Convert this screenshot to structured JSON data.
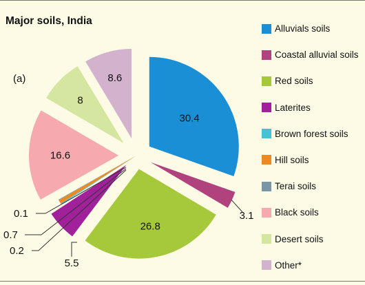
{
  "chart_data": {
    "type": "pie",
    "title": "Major soils, India",
    "panel_label": "(a)",
    "legend_position": "right",
    "slices": [
      {
        "label": "Alluvials soils",
        "value": 30.4,
        "display": "30.4",
        "color": "#1a8fd6",
        "exploded": true
      },
      {
        "label": "Coastal alluvial soils",
        "value": 3.1,
        "display": "3.1",
        "color": "#b0427e",
        "exploded": true
      },
      {
        "label": "Red soils",
        "value": 26.8,
        "display": "26.8",
        "color": "#a6c93c",
        "exploded": true
      },
      {
        "label": "Laterites",
        "value": 5.5,
        "display": "5.5",
        "color": "#a0219a",
        "exploded": true
      },
      {
        "label": "Brown forest soils",
        "value": 0.2,
        "display": "0.2",
        "color": "#44c4d2",
        "exploded": false
      },
      {
        "label": "Hill soils",
        "value": 0.7,
        "display": "0.7",
        "color": "#ee8a24",
        "exploded": false
      },
      {
        "label": "Terai soils",
        "value": 0.1,
        "display": "0.1",
        "color": "#7a96a6",
        "exploded": false
      },
      {
        "label": "Black soils",
        "value": 16.6,
        "display": "16.6",
        "color": "#f6a9ae",
        "exploded": true
      },
      {
        "label": "Desert soils",
        "value": 8.0,
        "display": "8",
        "color": "#d4e6a0",
        "exploded": true
      },
      {
        "label": "Other*",
        "value": 8.6,
        "display": "8.6",
        "color": "#d2b2cd",
        "exploded": true
      }
    ]
  }
}
